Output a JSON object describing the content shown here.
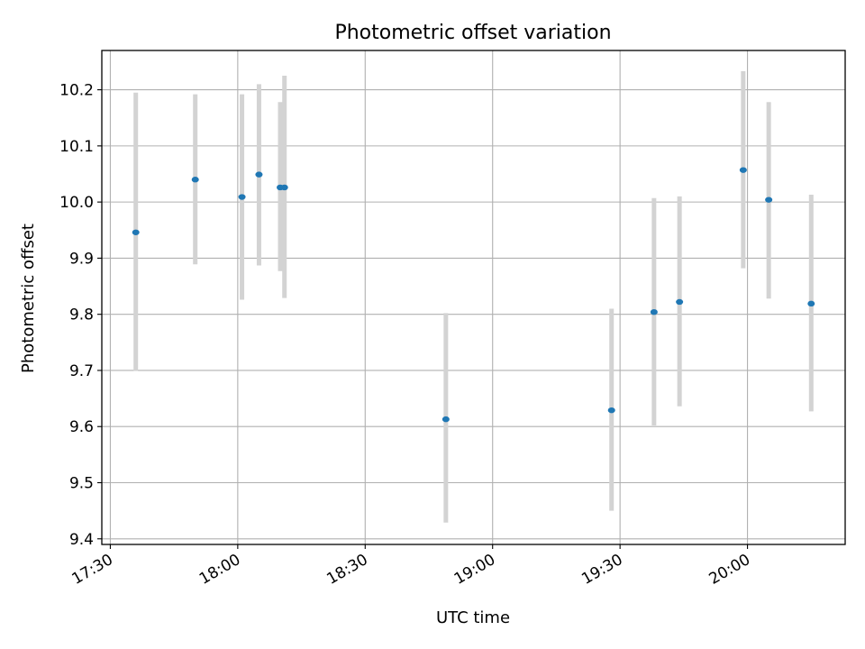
{
  "chart_data": {
    "type": "scatter",
    "title": "Photometric offset variation",
    "xlabel": "UTC time",
    "ylabel": "Photometric offset",
    "xlim": [
      "17:28",
      "20:23"
    ],
    "ylim": [
      9.39,
      10.27
    ],
    "x_ticks": [
      "17:30",
      "18:00",
      "18:30",
      "19:00",
      "19:30",
      "20:00"
    ],
    "y_ticks": [
      9.4,
      9.5,
      9.6,
      9.7,
      9.8,
      9.9,
      10.0,
      10.1,
      10.2
    ],
    "grid": true,
    "series": [
      {
        "x": [
          "17:36",
          "17:50",
          "18:01",
          "18:05",
          "18:10",
          "18:11",
          "18:49",
          "19:28",
          "19:38",
          "19:44",
          "19:59",
          "20:05",
          "20:15"
        ],
        "y": [
          9.946,
          10.04,
          10.009,
          10.049,
          10.026,
          10.026,
          9.613,
          9.629,
          9.804,
          9.822,
          10.057,
          10.004,
          9.819
        ],
        "err_low": [
          9.699,
          9.889,
          9.826,
          9.887,
          9.877,
          9.829,
          9.429,
          9.45,
          9.602,
          9.636,
          9.882,
          9.828,
          9.627
        ],
        "err_high": [
          10.195,
          10.192,
          10.192,
          10.21,
          10.178,
          10.225,
          9.802,
          9.81,
          10.007,
          10.01,
          10.233,
          10.178,
          10.013
        ],
        "color": "#1f77b4",
        "errorbar_color": "#d3d3d3"
      }
    ]
  }
}
